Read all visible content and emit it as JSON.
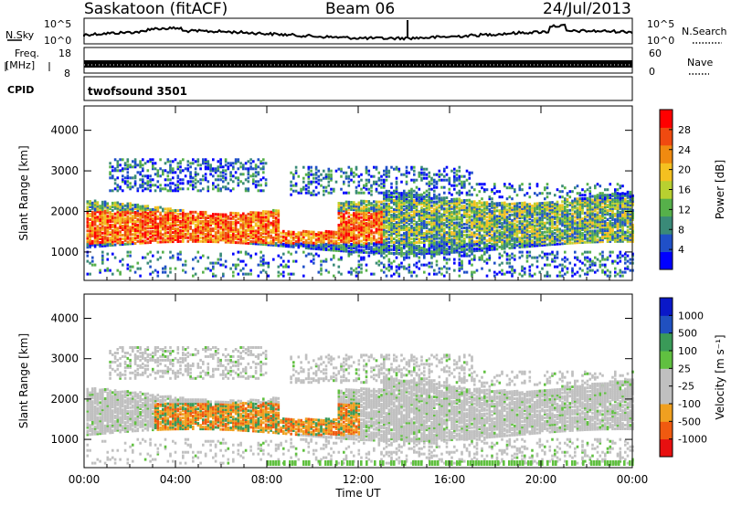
{
  "header": {
    "station": "Saskatoon (fitACF)",
    "beam": "Beam 06",
    "date": "24/Jul/2013"
  },
  "strip_labels": {
    "nsky": "N.Sky",
    "nsearch": "N.Search",
    "nsky_top": "10^5",
    "nsky_bottom": "10^0",
    "nsearch_top": "10^5",
    "nsearch_bottom": "10^0",
    "freq_line1": "Freq.",
    "freq_line2": "[MHz]",
    "freq_top": "18",
    "freq_bottom": "8",
    "nave": "Nave",
    "nave_top": "60",
    "nave_bottom": "0",
    "cpid": "CPID",
    "cpid_value": "twofsound 3501"
  },
  "colors": {
    "power_scale": [
      "#0000ff",
      "#2050c8",
      "#3a8a78",
      "#56b04a",
      "#b8d030",
      "#f4c020",
      "#f08a10",
      "#f04a10",
      "#ff0000"
    ],
    "velocity_scale": [
      "#e81010",
      "#f05a10",
      "#f0a020",
      "#c0c0c0",
      "#c0c0c0",
      "#60c040",
      "#3a9a58",
      "#2050c0",
      "#0a18c8"
    ]
  },
  "chart_data": [
    {
      "type": "heatmap",
      "panel": "power",
      "xlabel": "",
      "ylabel": "Slant Range [km]",
      "yticks": [
        "1000",
        "2000",
        "3000",
        "4000"
      ],
      "ylim": [
        300,
        4600
      ],
      "xlim_hours": [
        0,
        24
      ],
      "xticks": [
        "00:00",
        "04:00",
        "08:00",
        "12:00",
        "16:00",
        "20:00",
        "00:00"
      ],
      "colorbar": {
        "label": "Power [dB]",
        "ticks": [
          "4",
          "8",
          "12",
          "16",
          "20",
          "24",
          "28"
        ]
      },
      "bands": [
        {
          "t": [
            0.0,
            13.0
          ],
          "range": [
            1300,
            2100
          ],
          "level": "high"
        },
        {
          "t": [
            13.0,
            24.0
          ],
          "range": [
            1300,
            2300
          ],
          "level": "mid"
        },
        {
          "t": [
            1.5,
            7.0
          ],
          "range": [
            2600,
            3300
          ],
          "level": "low"
        }
      ]
    },
    {
      "type": "heatmap",
      "panel": "velocity",
      "xlabel": "Time UT",
      "ylabel": "Slant Range [km]",
      "yticks": [
        "1000",
        "2000",
        "3000",
        "4000"
      ],
      "ylim": [
        300,
        4600
      ],
      "xlim_hours": [
        0,
        24
      ],
      "xticks": [
        "00:00",
        "04:00",
        "08:00",
        "12:00",
        "16:00",
        "20:00",
        "00:00"
      ],
      "colorbar": {
        "label": "Velocity [m s⁻¹]",
        "ticks": [
          "1000",
          "500",
          "100",
          "25",
          "-25",
          "-100",
          "-500",
          "-1000"
        ]
      }
    }
  ]
}
